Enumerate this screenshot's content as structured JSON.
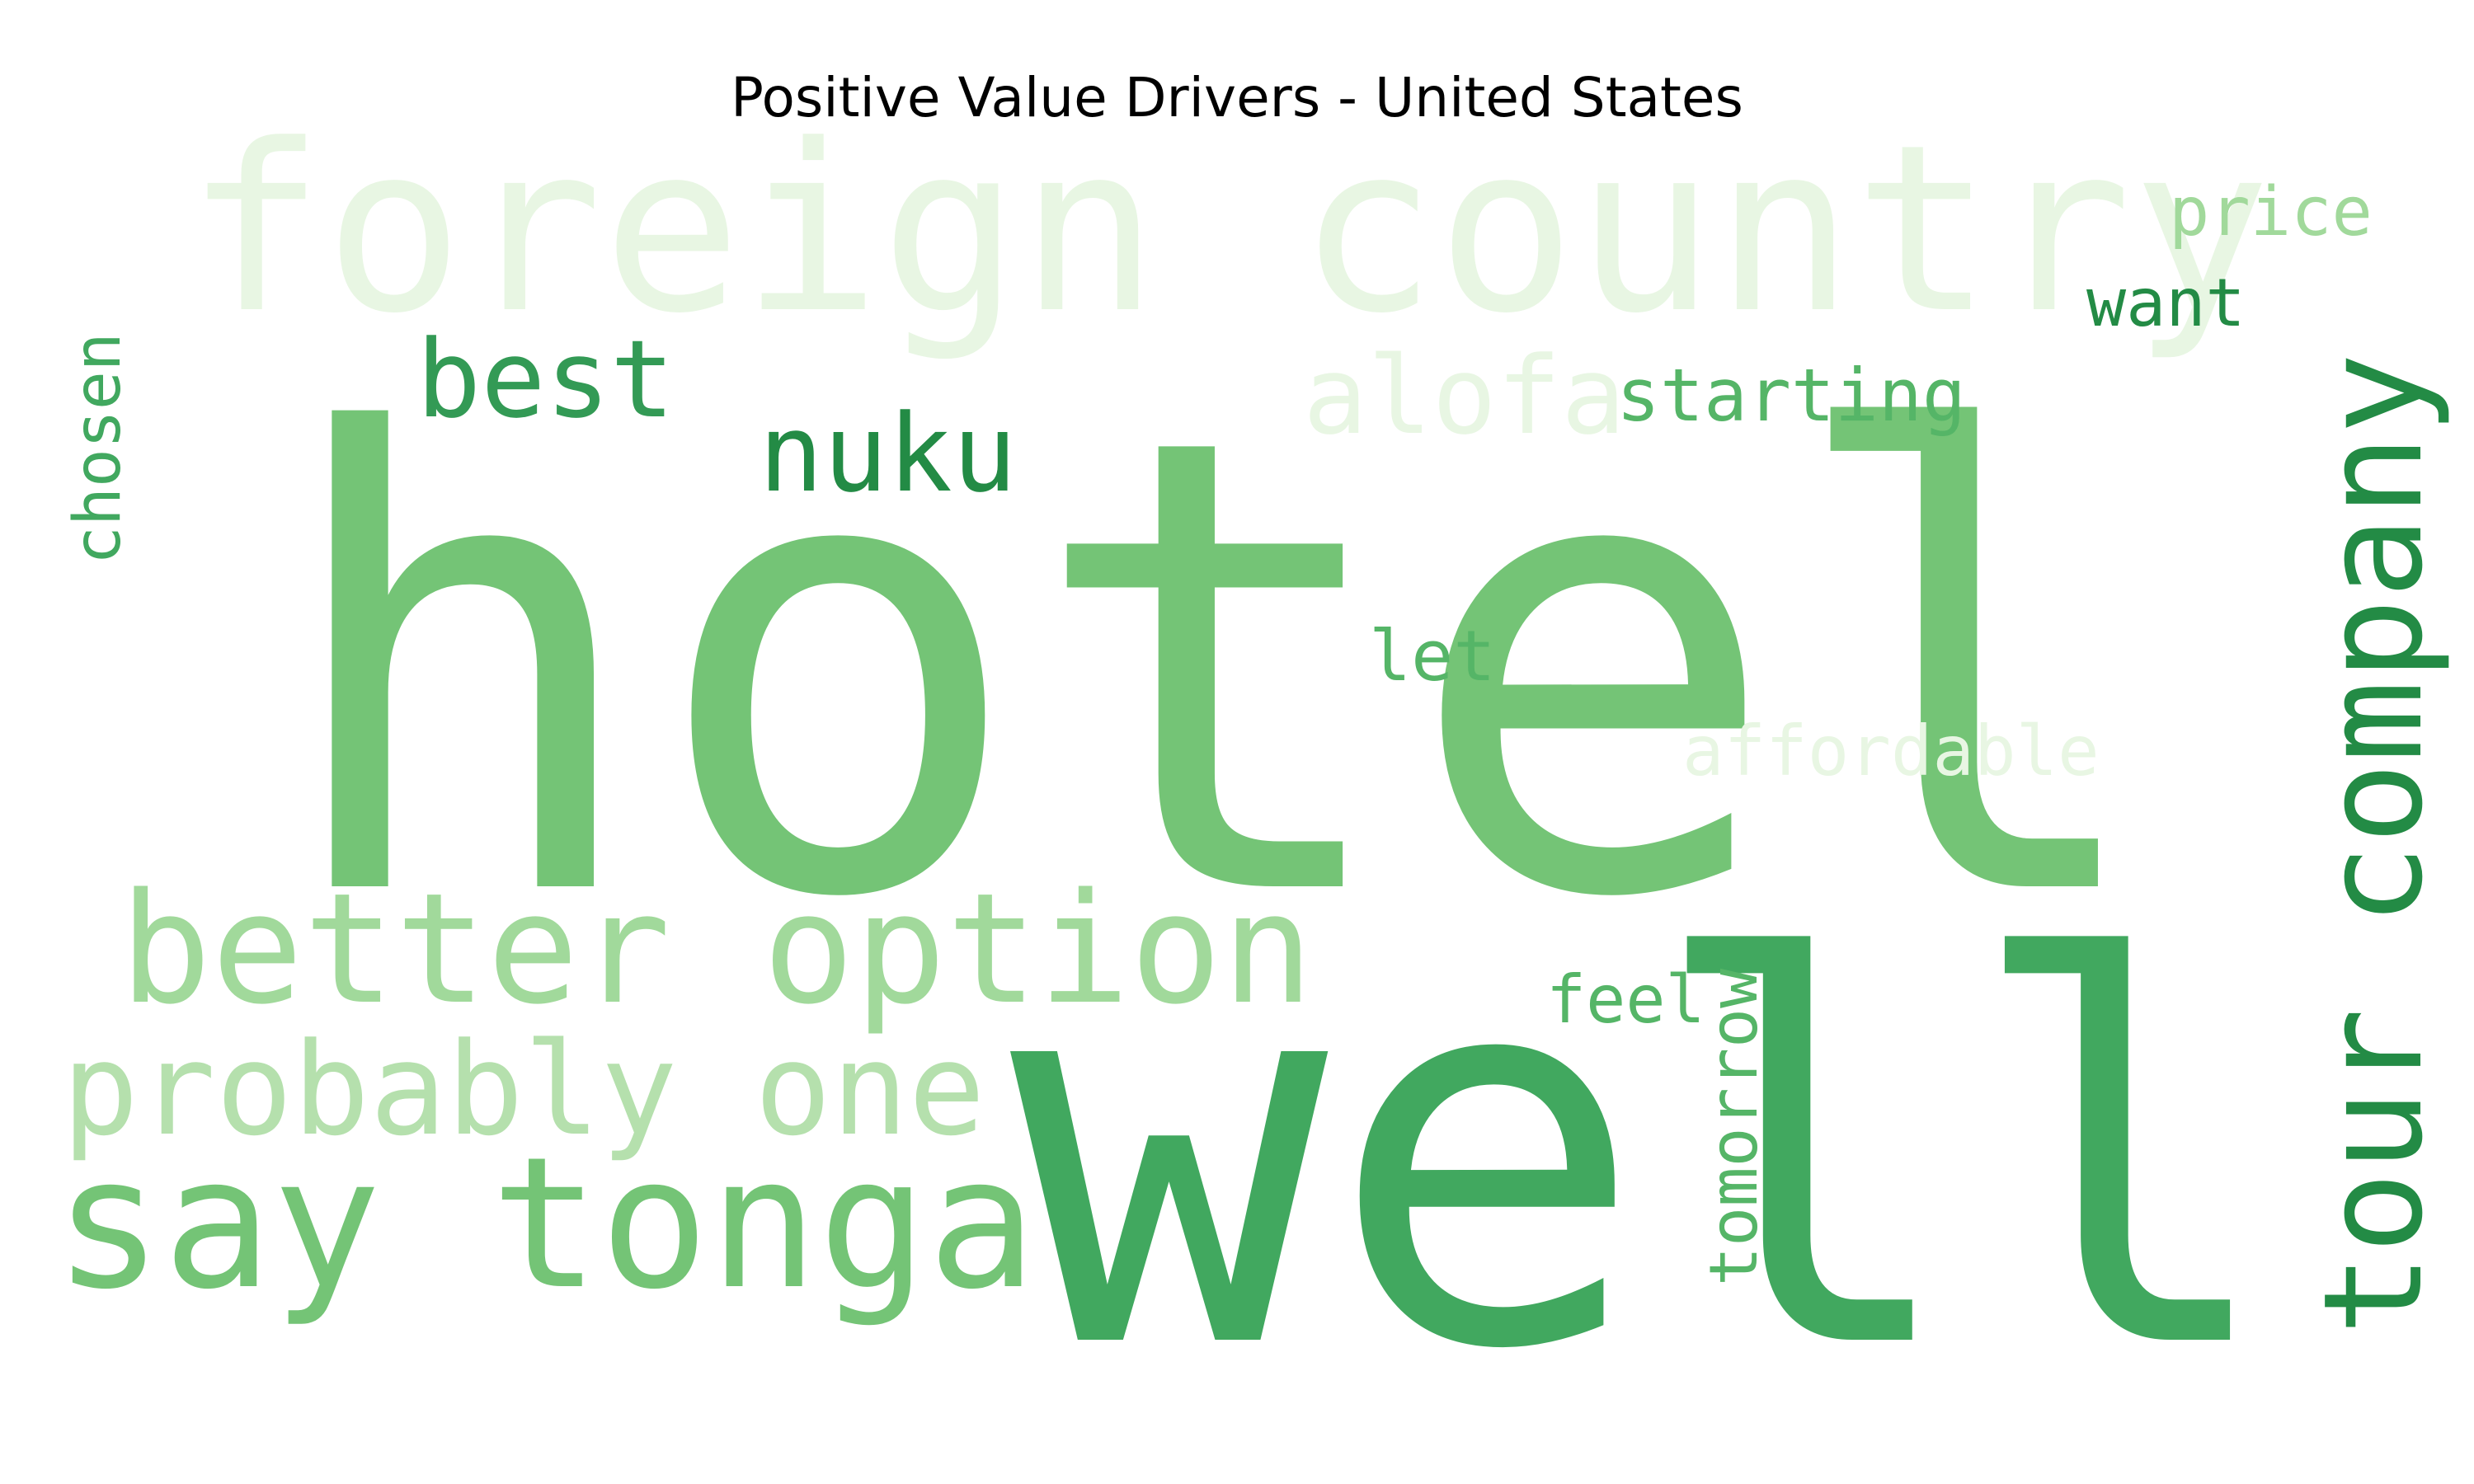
{
  "chart_data": {
    "type": "wordcloud",
    "title": "Positive Value Drivers - United States",
    "colormap": "Greens",
    "words": [
      {
        "text": "hotel",
        "weight": 1.0,
        "color": "#74c476",
        "orientation": "horizontal"
      },
      {
        "text": "well",
        "weight": 0.95,
        "color": "#41a85f",
        "orientation": "horizontal"
      },
      {
        "text": "foreign country",
        "weight": 0.5,
        "color": "#e8f6e3",
        "orientation": "horizontal"
      },
      {
        "text": "tour company",
        "weight": 0.4,
        "color": "#238b45",
        "orientation": "vertical"
      },
      {
        "text": "say tonga",
        "weight": 0.42,
        "color": "#74c476",
        "orientation": "horizontal"
      },
      {
        "text": "better option",
        "weight": 0.38,
        "color": "#a1d99b",
        "orientation": "horizontal"
      },
      {
        "text": "probably one",
        "weight": 0.35,
        "color": "#b5e0ad",
        "orientation": "horizontal"
      },
      {
        "text": "best",
        "weight": 0.25,
        "color": "#339a55",
        "orientation": "horizontal"
      },
      {
        "text": "nuku",
        "weight": 0.25,
        "color": "#238b45",
        "orientation": "horizontal"
      },
      {
        "text": "alofa",
        "weight": 0.25,
        "color": "#e8f6e3",
        "orientation": "horizontal"
      },
      {
        "text": "starting",
        "weight": 0.18,
        "color": "#55b567",
        "orientation": "horizontal"
      },
      {
        "text": "price",
        "weight": 0.16,
        "color": "#a1d99b",
        "orientation": "horizontal"
      },
      {
        "text": "want",
        "weight": 0.16,
        "color": "#238b45",
        "orientation": "horizontal"
      },
      {
        "text": "chosen",
        "weight": 0.16,
        "color": "#41a85f",
        "orientation": "vertical"
      },
      {
        "text": "let",
        "weight": 0.16,
        "color": "#55b567",
        "orientation": "horizontal"
      },
      {
        "text": "affordable",
        "weight": 0.16,
        "color": "#e8f6e3",
        "orientation": "horizontal"
      },
      {
        "text": "feel",
        "weight": 0.15,
        "color": "#55b567",
        "orientation": "horizontal"
      },
      {
        "text": "tomorrow",
        "weight": 0.15,
        "color": "#55b567",
        "orientation": "vertical"
      }
    ]
  }
}
